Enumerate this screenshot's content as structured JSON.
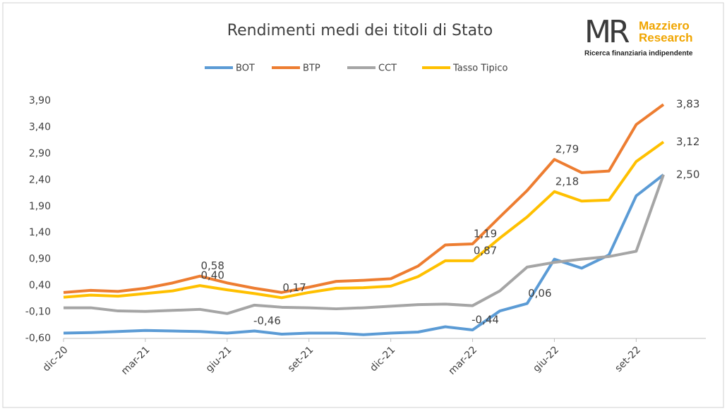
{
  "chart_data": {
    "type": "line",
    "title": "Rendimenti medi dei titoli di Stato",
    "logo": {
      "mark": "MR",
      "name": "Mazziero Research",
      "tagline": "Ricerca finanziaria indipendente"
    },
    "categories": [
      "dic-20",
      null,
      null,
      "mar-21",
      null,
      null,
      "giu-21",
      null,
      null,
      "set-21",
      null,
      null,
      "dic-21",
      null,
      null,
      "mar-22",
      null,
      null,
      "giu-22",
      null,
      null,
      "set-22",
      null
    ],
    "series": [
      {
        "name": "BOT",
        "color": "#5b9bd5",
        "values": [
          -0.5,
          -0.49,
          -0.47,
          -0.45,
          -0.46,
          -0.47,
          -0.5,
          -0.46,
          -0.52,
          -0.5,
          -0.5,
          -0.53,
          -0.5,
          -0.48,
          -0.38,
          -0.44,
          -0.08,
          0.06,
          0.9,
          0.73,
          0.98,
          2.1,
          2.5
        ],
        "value_labels": [
          null,
          null,
          null,
          null,
          null,
          null,
          null,
          "-0,46",
          null,
          null,
          null,
          null,
          null,
          null,
          null,
          "-0,44",
          null,
          "0,06",
          null,
          null,
          null,
          null,
          "2,50"
        ]
      },
      {
        "name": "BTP",
        "color": "#ed7d31",
        "values": [
          0.27,
          0.31,
          0.29,
          0.35,
          0.45,
          0.58,
          0.45,
          0.35,
          0.27,
          0.37,
          0.48,
          0.5,
          0.53,
          0.77,
          1.17,
          1.19,
          1.7,
          2.2,
          2.79,
          2.54,
          2.57,
          3.45,
          3.83
        ],
        "value_labels": [
          null,
          null,
          null,
          null,
          null,
          "0,58",
          null,
          null,
          null,
          null,
          null,
          null,
          null,
          null,
          null,
          "1,19",
          null,
          null,
          "2,79",
          null,
          null,
          null,
          "3,83"
        ]
      },
      {
        "name": "CCT",
        "color": "#a5a5a5",
        "values": [
          -0.02,
          -0.02,
          -0.08,
          -0.09,
          -0.07,
          -0.05,
          -0.13,
          0.03,
          -0.01,
          -0.02,
          -0.04,
          -0.02,
          0.01,
          0.04,
          0.05,
          0.02,
          0.3,
          0.75,
          0.84,
          0.9,
          0.95,
          1.05,
          2.5
        ]
      },
      {
        "name": "Tasso Tipico",
        "color": "#ffc000",
        "values": [
          0.18,
          0.22,
          0.2,
          0.25,
          0.3,
          0.4,
          0.32,
          0.25,
          0.17,
          0.27,
          0.35,
          0.36,
          0.39,
          0.57,
          0.87,
          0.87,
          1.3,
          1.7,
          2.18,
          2.0,
          2.02,
          2.75,
          3.12
        ],
        "value_labels": [
          null,
          null,
          null,
          null,
          null,
          "0,40",
          null,
          null,
          "0,17",
          null,
          null,
          null,
          null,
          null,
          null,
          "0,87",
          null,
          null,
          "2,18",
          null,
          null,
          null,
          "3,12"
        ]
      }
    ],
    "ylim": [
      -0.6,
      3.9
    ],
    "yticks": [
      {
        "value": -0.6,
        "label": "-0,60"
      },
      {
        "value": -0.1,
        "label": "-0,10"
      },
      {
        "value": 0.4,
        "label": "0,40"
      },
      {
        "value": 0.9,
        "label": "0,90"
      },
      {
        "value": 1.4,
        "label": "1,40"
      },
      {
        "value": 1.9,
        "label": "1,90"
      },
      {
        "value": 2.4,
        "label": "2,40"
      },
      {
        "value": 2.9,
        "label": "2,90"
      },
      {
        "value": 3.4,
        "label": "3,40"
      },
      {
        "value": 3.9,
        "label": "3,90"
      }
    ],
    "grid": false
  }
}
